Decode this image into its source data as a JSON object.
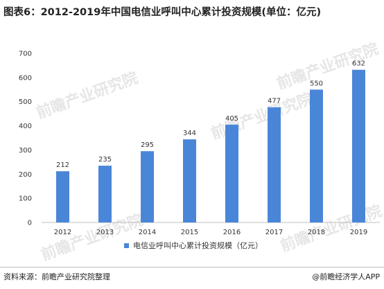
{
  "title": "图表6：2012-2019年中国电信业呼叫中心累计投资规模(单位：亿元)",
  "source": "资料来源：前瞻产业研究院整理",
  "brand": "@前瞻经济学人APP",
  "watermark": "前瞻产业研究院",
  "colors": {
    "bar": "#4a86d8",
    "grid": "#e6e6e6",
    "rule": "#2b5f9e"
  },
  "chart_data": {
    "type": "bar",
    "categories": [
      "2012",
      "2013",
      "2014",
      "2015",
      "2016",
      "2017",
      "2018",
      "2019"
    ],
    "series": [
      {
        "name": "电信业呼叫中心累计投资规模（亿元）",
        "values": [
          212,
          235,
          295,
          344,
          405,
          477,
          550,
          632
        ]
      }
    ],
    "ylim": [
      0,
      700
    ],
    "yticks": [
      0,
      100,
      200,
      300,
      400,
      500,
      600,
      700
    ],
    "grid": false,
    "legend": "bottom-center",
    "data_labels": true
  }
}
